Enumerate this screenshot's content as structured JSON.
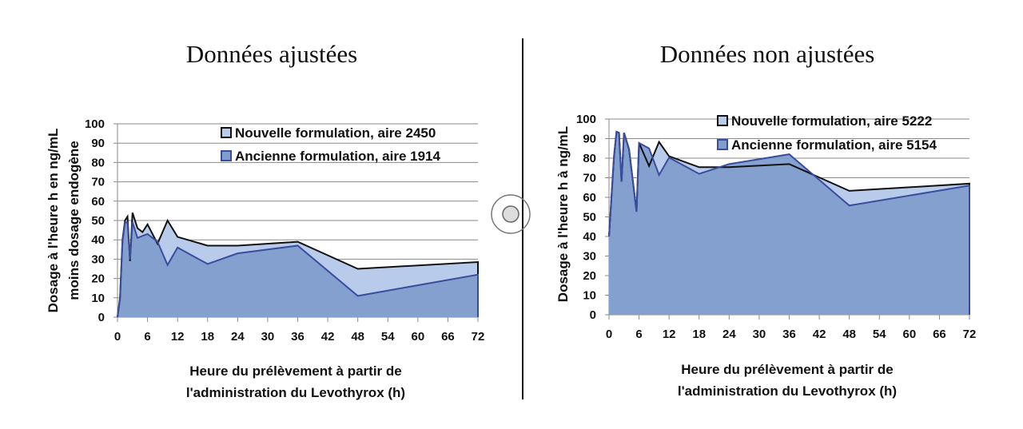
{
  "colors": {
    "nouvelle_fill": "#b9cbea",
    "nouvelle_line": "#111111",
    "ancienne_fill": "#7f9dcd",
    "ancienne_line": "#3a4c9e",
    "grid": "#8a8a8a"
  },
  "divider": {
    "handle_icon": "circle-handle-icon"
  },
  "chart_data": [
    {
      "type": "area",
      "title": "Données ajustées",
      "ylabel_lines": [
        "Dosage à l'heure h en ng/mL",
        "moins dosage endogène"
      ],
      "xlabel_lines": [
        "Heure du prélèvement à partir de",
        "l'administration du Levothyrox (h)"
      ],
      "xlim": [
        0,
        72
      ],
      "ylim": [
        0,
        100
      ],
      "xticks": [
        0,
        6,
        12,
        18,
        24,
        30,
        36,
        42,
        48,
        54,
        60,
        66,
        72
      ],
      "yticks": [
        0,
        10,
        20,
        30,
        40,
        50,
        60,
        70,
        80,
        90,
        100
      ],
      "grid": true,
      "legend": "top-right",
      "series": [
        {
          "name": "Nouvelle formulation, aire 2450",
          "x": [
            0,
            0.5,
            1,
            1.5,
            2,
            2.5,
            3,
            4,
            5,
            6,
            8,
            10,
            12,
            18,
            24,
            36,
            48,
            72
          ],
          "y": [
            0,
            10,
            40,
            50,
            52,
            29,
            54,
            46,
            44,
            48,
            38,
            50,
            41.5,
            37,
            37,
            39,
            25,
            28.5
          ]
        },
        {
          "name": "Ancienne formulation, aire 1914",
          "x": [
            0,
            0.5,
            1,
            1.5,
            2,
            2.5,
            3,
            4,
            5,
            6,
            8,
            10,
            12,
            18,
            24,
            36,
            48,
            72
          ],
          "y": [
            0,
            9,
            39,
            49,
            49,
            30,
            49,
            41,
            42,
            43,
            39,
            27,
            36,
            27.5,
            33,
            37,
            11,
            22
          ]
        }
      ]
    },
    {
      "type": "area",
      "title": "Données non ajustées",
      "ylabel_lines": [
        "Dosage à l'heure h à ng/mL"
      ],
      "xlabel_lines": [
        "Heure du prélèvement à partir de",
        "l'administration du Levothyrox (h)"
      ],
      "xlim": [
        0,
        72
      ],
      "ylim": [
        0,
        100
      ],
      "xticks": [
        0,
        6,
        12,
        18,
        24,
        30,
        36,
        42,
        48,
        54,
        60,
        66,
        72
      ],
      "yticks": [
        0,
        10,
        20,
        30,
        40,
        50,
        60,
        70,
        80,
        90,
        100
      ],
      "grid": true,
      "legend": "top-right",
      "series": [
        {
          "name": "Nouvelle formulation, aire 5222",
          "x": [
            0,
            1,
            1.5,
            2,
            2.5,
            3,
            4,
            5.5,
            6,
            8,
            10,
            12,
            18,
            24,
            36,
            48,
            72
          ],
          "y": [
            40,
            81,
            93.5,
            93,
            68,
            93,
            84.6,
            53,
            87.8,
            76,
            88.3,
            81,
            75.4,
            75.4,
            77,
            63.3,
            67
          ]
        },
        {
          "name": "Ancienne formulation, aire 5154",
          "x": [
            0,
            1,
            1.5,
            2,
            2.5,
            3,
            4,
            5.5,
            6,
            8,
            10,
            12,
            18,
            24,
            36,
            48,
            72
          ],
          "y": [
            40,
            81,
            93.5,
            93,
            68,
            93,
            84.6,
            52.6,
            87.8,
            85,
            71.4,
            80.3,
            72,
            77,
            82,
            55.8,
            66
          ]
        }
      ]
    }
  ]
}
